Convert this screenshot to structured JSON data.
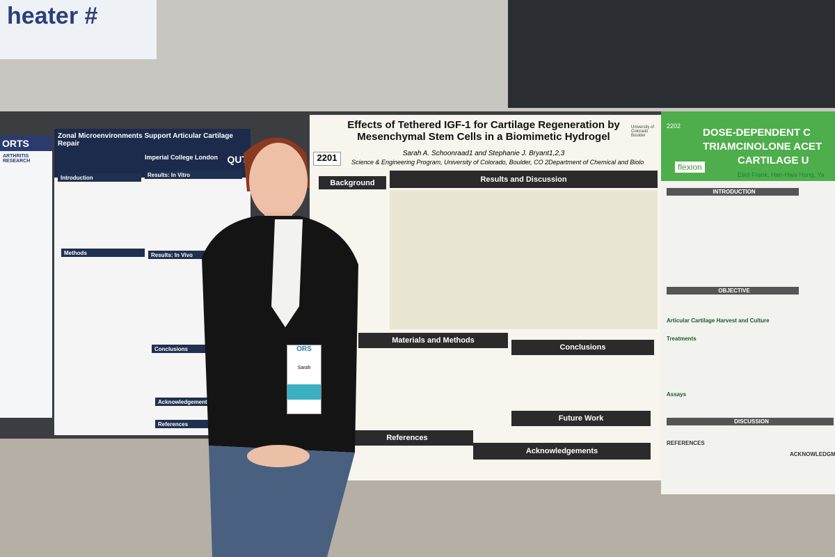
{
  "banner": {
    "text": "heater #"
  },
  "poster_edge": {
    "logo": "ORTS",
    "org": "ARTHRITIS RESEARCH"
  },
  "poster_zonal": {
    "title": "Zonal Microenvironments Support Articular Cartilage Repair",
    "sections": [
      "Introduction",
      "Results: In Vitro",
      "Methods",
      "Results: In Vivo",
      "Conclusions",
      "Acknowledgements",
      "References"
    ],
    "logos": [
      "Imperial College London",
      "QUT"
    ]
  },
  "poster_igf": {
    "number": "2201",
    "title": "Effects of Tethered IGF-1 for Cartilage Regeneration by Mesenchymal Stem Cells in a Biomimetic Hydrogel",
    "authors": "Sarah A. Schoonraad1 and Stephanie J. Bryant1,2,3",
    "affiliation": "Science & Engineering Program, University of Colorado, Boulder, CO 2Department of Chemical and Biological",
    "logo": "University of Colorado Boulder",
    "sections": [
      "Background",
      "Results and Discussion",
      "Materials and Methods",
      "Conclusions",
      "Future Work",
      "References",
      "Acknowledgements"
    ]
  },
  "poster_dose": {
    "number": "2202",
    "title_lines": [
      "DOSE-DEPENDENT C",
      "TRIAMCINOLONE ACET",
      "CARTILAGE U"
    ],
    "logo": "flexion",
    "authors": "Eliot Frank, Han-Hwa Hung, Ya",
    "sections": [
      "INTRODUCTION",
      "OBJECTIVE",
      "Articular Cartilage Harvest and Culture",
      "Treatments",
      "Assays",
      "DISCUSSION",
      "REFERENCES",
      "ACKNOWLEDGMENT"
    ]
  },
  "badge": {
    "org": "ORS",
    "name": "Sarah"
  }
}
